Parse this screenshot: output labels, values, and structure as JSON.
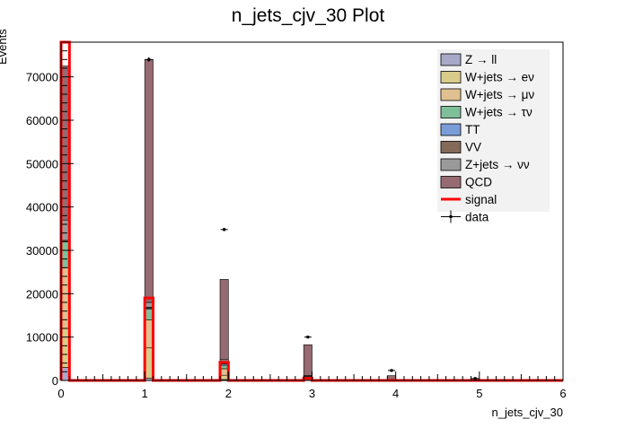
{
  "chart_data": {
    "type": "bar",
    "title": "n_jets_cjv_30 Plot",
    "xlabel": "n_jets_cjv_30",
    "ylabel": "Events",
    "xlim": [
      0,
      6
    ],
    "ylim": [
      0,
      78000
    ],
    "x_ticks": [
      "0",
      "1",
      "2",
      "3",
      "4",
      "5",
      "6"
    ],
    "y_ticks": [
      "0",
      "10000",
      "20000",
      "30000",
      "40000",
      "50000",
      "60000",
      "70000"
    ],
    "bin_edges": [
      0,
      0.1,
      1.0,
      1.1,
      1.9,
      2.0,
      2.9,
      3.0,
      3.9,
      4.0,
      4.9,
      5.0
    ],
    "stack": [
      {
        "name": "Z → ll",
        "color": "#a8a8c8",
        "bins": [
          [
            0,
            0.1,
            3000
          ],
          [
            1.0,
            1.1,
            500
          ],
          [
            1.9,
            2.0,
            200
          ],
          [
            2.9,
            3.0,
            80
          ]
        ]
      },
      {
        "name": "W+jets → eν",
        "color": "#d9cc8a",
        "bins": [
          [
            0,
            0.1,
            9000
          ],
          [
            1.0,
            1.1,
            7000
          ],
          [
            1.9,
            2.0,
            1000
          ],
          [
            2.9,
            3.0,
            200
          ]
        ]
      },
      {
        "name": "W+jets → μν",
        "color": "#e0c090",
        "bins": [
          [
            0,
            0.1,
            14000
          ],
          [
            1.0,
            1.1,
            6500
          ],
          [
            1.9,
            2.0,
            1500
          ],
          [
            2.9,
            3.0,
            300
          ]
        ]
      },
      {
        "name": "W+jets → τν",
        "color": "#7fbf9a",
        "bins": [
          [
            0,
            0.1,
            6000
          ],
          [
            1.0,
            1.1,
            2500
          ],
          [
            1.9,
            2.0,
            800
          ],
          [
            2.9,
            3.0,
            150
          ]
        ]
      },
      {
        "name": "TT",
        "color": "#7a9cd8",
        "bins": [
          [
            0,
            0.1,
            0
          ],
          [
            1.0,
            1.1,
            200
          ],
          [
            1.9,
            2.0,
            300
          ],
          [
            2.9,
            3.0,
            100
          ]
        ]
      },
      {
        "name": "VV",
        "color": "#856a5a",
        "bins": [
          [
            0,
            0.1,
            300
          ],
          [
            1.0,
            1.1,
            200
          ],
          [
            1.9,
            2.0,
            200
          ],
          [
            2.9,
            3.0,
            100
          ]
        ]
      },
      {
        "name": "Z+jets → νν",
        "color": "#9a9a9a",
        "bins": [
          [
            0,
            0.1,
            4700
          ],
          [
            1.0,
            1.1,
            1100
          ],
          [
            1.9,
            2.0,
            800
          ],
          [
            2.9,
            3.0,
            200
          ]
        ]
      },
      {
        "name": "QCD",
        "color": "#956a70",
        "bins": [
          [
            0,
            0.1,
            35500
          ],
          [
            1.0,
            1.1,
            56000
          ],
          [
            1.9,
            2.0,
            18500
          ],
          [
            2.9,
            3.0,
            7100
          ],
          [
            3.9,
            4.0,
            1100
          ],
          [
            4.9,
            5.0,
            300
          ]
        ]
      }
    ],
    "signal": {
      "name": "signal",
      "color": "#ff0000",
      "steps": [
        [
          0,
          0.1,
          78000
        ],
        [
          0.1,
          1.0,
          0
        ],
        [
          1.0,
          1.1,
          19000
        ],
        [
          1.1,
          1.9,
          0
        ],
        [
          1.9,
          2.0,
          4200
        ],
        [
          2.0,
          2.9,
          0
        ],
        [
          2.9,
          3.0,
          500
        ],
        [
          3.0,
          6.0,
          0
        ]
      ]
    },
    "data": {
      "name": "data",
      "points": [
        [
          1.05,
          74000
        ],
        [
          1.95,
          34800
        ],
        [
          2.95,
          10000
        ],
        [
          3.95,
          2300
        ],
        [
          4.95,
          450
        ]
      ]
    },
    "legend": {
      "position": "top-right",
      "entries": [
        {
          "label": "Z → ll",
          "kind": "box",
          "color": "#a8a8c8"
        },
        {
          "label": "W+jets → eν",
          "kind": "box",
          "color": "#d9cc8a"
        },
        {
          "label": "W+jets → μν",
          "kind": "box",
          "color": "#e0c090"
        },
        {
          "label": "W+jets → τν",
          "kind": "box",
          "color": "#7fbf9a"
        },
        {
          "label": "TT",
          "kind": "box",
          "color": "#7a9cd8"
        },
        {
          "label": "VV",
          "kind": "box",
          "color": "#856a5a"
        },
        {
          "label": "Z+jets → νν",
          "kind": "box",
          "color": "#9a9a9a"
        },
        {
          "label": "QCD",
          "kind": "box",
          "color": "#956a70"
        },
        {
          "label": "signal",
          "kind": "line",
          "color": "#ff0000"
        },
        {
          "label": "data",
          "kind": "marker",
          "color": "#000000"
        }
      ]
    }
  }
}
